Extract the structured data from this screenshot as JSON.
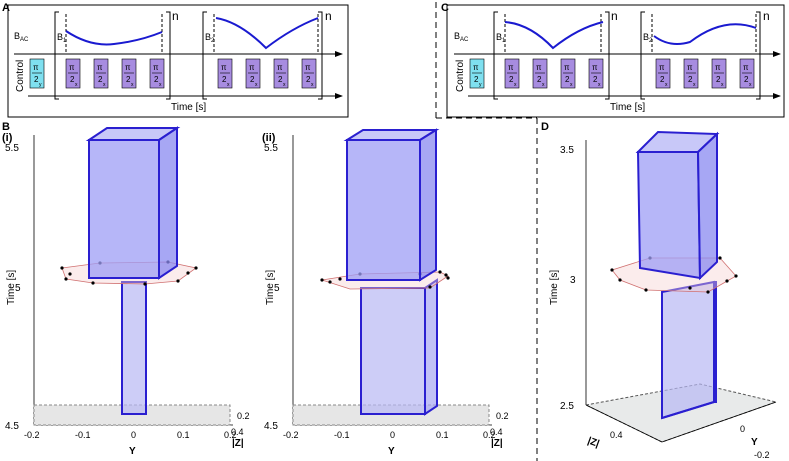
{
  "panels": {
    "a": {
      "letter": "A",
      "b_ac": "BAC",
      "b1": "B1",
      "b2": "B2",
      "control": "Control",
      "repeat": "n",
      "time": "Time [s]",
      "pulse_y": "π/2 y",
      "pulse_x": "π/2 x"
    },
    "b": {
      "letter": "B",
      "sub_i": "(i)",
      "sub_ii": "(ii)"
    },
    "c": {
      "letter": "C"
    },
    "d": {
      "letter": "D"
    }
  },
  "pulse_labels": {
    "pi": "π",
    "two": "2",
    "sub_x": "x",
    "sub_y": "y"
  },
  "b_plots": {
    "ylabel": "Time [s]",
    "xlabel": "Y",
    "zlabel": "|Z|",
    "yticks": [
      "5.5",
      "5",
      "4.5"
    ],
    "xticks": [
      "-0.2",
      "-0.1",
      "0",
      "0.1",
      "0.2"
    ],
    "zticks": [
      "0.2",
      "0.4"
    ]
  },
  "d_plot": {
    "ylabel": "Time [s]",
    "yticks": [
      "3.5",
      "3",
      "2.5"
    ],
    "zlabel": "|Z|",
    "ztick": "0.4",
    "xlabel": "Y",
    "xticks": [
      "0",
      "-0.2"
    ]
  },
  "colors": {
    "box_edge": "#2a1fd0",
    "box_fill": "#9e9ef5",
    "pulse": "#a78ce0",
    "pulse_y": "#7fe0f0",
    "wave": "#1a1ad0"
  }
}
